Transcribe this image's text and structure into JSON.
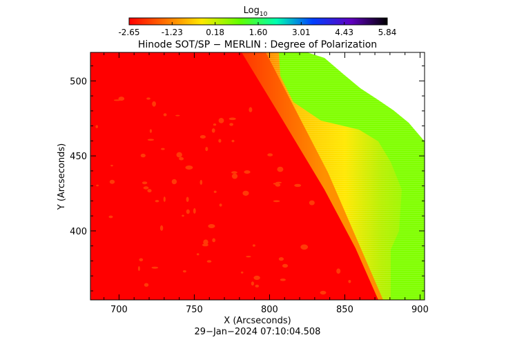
{
  "colorbar": {
    "label_main": "Log",
    "label_sub": "10",
    "ticks": [
      "-2.65",
      "-1.23",
      "0.18",
      "1.60",
      "3.01",
      "4.43",
      "5.84"
    ]
  },
  "chart_data": {
    "type": "heatmap",
    "title": "Hinode SOT/SP − MERLIN : Degree of Polarization",
    "xlabel": "X (Arcseconds)",
    "ylabel": "Y (Arcseconds)",
    "xlim": [
      681,
      903
    ],
    "ylim": [
      354,
      519
    ],
    "x_ticks": [
      700,
      750,
      800,
      850,
      900
    ],
    "y_ticks": [
      400,
      450,
      500
    ],
    "colorscale": {
      "name": "rainbow (red → black)",
      "min": -2.65,
      "max": 5.84,
      "units": "Log10"
    },
    "regions": [
      {
        "name": "solar disk",
        "approx_log_value": -2.65,
        "color": "#ff0000"
      },
      {
        "name": "limb",
        "approx_log_value": -1.8,
        "color": "#ff5a00"
      },
      {
        "name": "off-limb inner",
        "approx_log_value": -0.6,
        "color": "#ffdc00"
      },
      {
        "name": "off-limb outer",
        "approx_log_value": 0.8,
        "color": "#80ff00"
      },
      {
        "name": "no data",
        "color": "#ffffff"
      }
    ],
    "limb_points": [
      [
        850,
        354
      ],
      [
        790,
        510
      ],
      [
        786,
        519
      ]
    ],
    "timestamp": "29−Jan−2024 07:10:04.508"
  }
}
